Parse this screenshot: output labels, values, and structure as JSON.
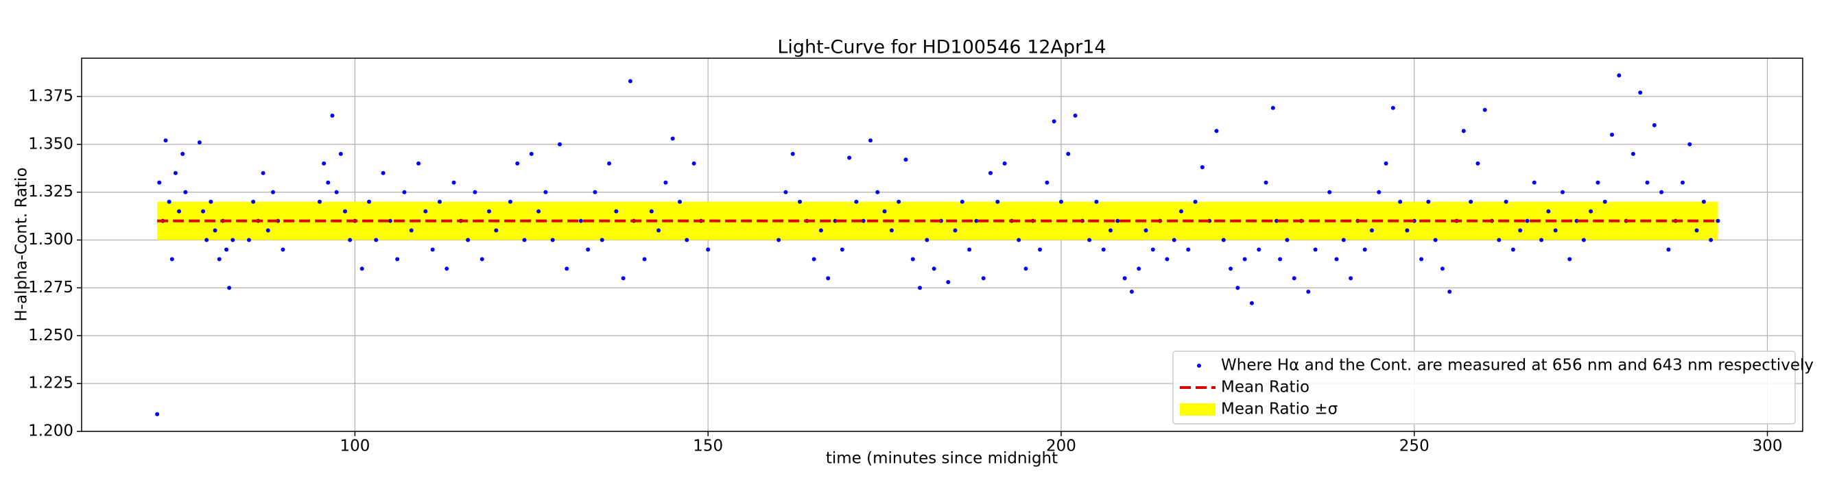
{
  "chart_data": {
    "type": "scatter",
    "title": "Light-Curve for HD100546 12Apr14",
    "x_label": "time (minutes since midnight",
    "y_label": "H-alpha-Cont. Ratio",
    "xlim": [
      61.3,
      305
    ],
    "ylim": [
      1.2,
      1.395
    ],
    "xticks": [
      100,
      150,
      200,
      250,
      300
    ],
    "yticks": [
      {
        "value": 1.2,
        "label": "1.200"
      },
      1.225,
      {
        "value": 1.25,
        "label": "1.250"
      },
      1.275,
      {
        "value": 1.3,
        "label": "1.300"
      },
      1.325,
      {
        "value": 1.35,
        "label": "1.350"
      },
      1.375
    ],
    "grid": true,
    "legend": "lower right",
    "series": [
      {
        "name": "Where Hα and the Cont. are measured at 656 nm and 643 nm respectively",
        "color": "#0000ff",
        "x": [
          72,
          72.3,
          72.8,
          73.2,
          73.7,
          74.1,
          74.6,
          75.1,
          75.6,
          76,
          78,
          78.5,
          79,
          79.6,
          80.2,
          80.8,
          81.3,
          81.8,
          82.2,
          82.7,
          85,
          85.6,
          86.3,
          87,
          87.7,
          88.4,
          89.1,
          89.8,
          95,
          95.6,
          96.2,
          96.8,
          97.4,
          98,
          98.6,
          99.3,
          100,
          101,
          102,
          103,
          104,
          105,
          106,
          107,
          108,
          109,
          110,
          111,
          112,
          113,
          114,
          115,
          116,
          117,
          118,
          119,
          120,
          122,
          123,
          124,
          125,
          126,
          127,
          128,
          129,
          130,
          132,
          133,
          134,
          135,
          136,
          137,
          138,
          139,
          139.5,
          141,
          142,
          143,
          144,
          145,
          146,
          147,
          148,
          149,
          150,
          160,
          161,
          162,
          163,
          164,
          165,
          166,
          167,
          168,
          169,
          170,
          171,
          172,
          173,
          174,
          175,
          176,
          177,
          178,
          179,
          180,
          181,
          182,
          183,
          184,
          185,
          186,
          187,
          188,
          189,
          190,
          191,
          192,
          193,
          194,
          195,
          196,
          197,
          198,
          199,
          200,
          201,
          202,
          203,
          204,
          205,
          206,
          207,
          208,
          209,
          210,
          211,
          212,
          213,
          214,
          215,
          216,
          217,
          218,
          219,
          220,
          221,
          222,
          223,
          224,
          225,
          226,
          227,
          228,
          229,
          230,
          230.5,
          231,
          232,
          233,
          234,
          235,
          236,
          238,
          239,
          240,
          241,
          242,
          243,
          244,
          245,
          246,
          247,
          248,
          249,
          250,
          251,
          252,
          253,
          254,
          255,
          256,
          257,
          258,
          259,
          260,
          261,
          262,
          263,
          264,
          265,
          266,
          267,
          268,
          269,
          270,
          271,
          272,
          273,
          274,
          275,
          276,
          277,
          278,
          279,
          280,
          281,
          282,
          283,
          284,
          285,
          286,
          287,
          288,
          289,
          290,
          291,
          292,
          293
        ],
        "values": [
          1.209,
          1.33,
          1.31,
          1.352,
          1.32,
          1.29,
          1.335,
          1.315,
          1.345,
          1.325,
          1.351,
          1.315,
          1.3,
          1.32,
          1.305,
          1.29,
          1.31,
          1.295,
          1.275,
          1.3,
          1.3,
          1.32,
          1.31,
          1.335,
          1.305,
          1.325,
          1.31,
          1.295,
          1.32,
          1.34,
          1.33,
          1.365,
          1.325,
          1.345,
          1.315,
          1.3,
          1.31,
          1.285,
          1.32,
          1.3,
          1.335,
          1.31,
          1.29,
          1.325,
          1.305,
          1.34,
          1.315,
          1.295,
          1.32,
          1.285,
          1.33,
          1.31,
          1.3,
          1.325,
          1.29,
          1.315,
          1.305,
          1.32,
          1.34,
          1.3,
          1.345,
          1.315,
          1.325,
          1.3,
          1.35,
          1.285,
          1.31,
          1.295,
          1.325,
          1.3,
          1.34,
          1.315,
          1.28,
          1.383,
          1.31,
          1.29,
          1.315,
          1.305,
          1.33,
          1.353,
          1.32,
          1.3,
          1.34,
          1.31,
          1.295,
          1.3,
          1.325,
          1.345,
          1.32,
          1.31,
          1.29,
          1.305,
          1.28,
          1.31,
          1.295,
          1.343,
          1.32,
          1.31,
          1.352,
          1.325,
          1.315,
          1.305,
          1.32,
          1.342,
          1.29,
          1.275,
          1.3,
          1.285,
          1.31,
          1.278,
          1.305,
          1.32,
          1.295,
          1.31,
          1.28,
          1.335,
          1.32,
          1.34,
          1.31,
          1.3,
          1.285,
          1.31,
          1.295,
          1.33,
          1.362,
          1.32,
          1.345,
          1.365,
          1.31,
          1.3,
          1.32,
          1.295,
          1.305,
          1.31,
          1.28,
          1.273,
          1.285,
          1.305,
          1.295,
          1.31,
          1.29,
          1.3,
          1.315,
          1.295,
          1.32,
          1.338,
          1.31,
          1.357,
          1.3,
          1.285,
          1.275,
          1.29,
          1.267,
          1.295,
          1.33,
          1.369,
          1.31,
          1.29,
          1.3,
          1.28,
          1.31,
          1.273,
          1.295,
          1.325,
          1.29,
          1.3,
          1.28,
          1.31,
          1.295,
          1.305,
          1.325,
          1.34,
          1.369,
          1.32,
          1.305,
          1.31,
          1.29,
          1.32,
          1.3,
          1.285,
          1.273,
          1.31,
          1.357,
          1.32,
          1.34,
          1.368,
          1.31,
          1.3,
          1.32,
          1.295,
          1.305,
          1.31,
          1.33,
          1.3,
          1.315,
          1.305,
          1.325,
          1.29,
          1.31,
          1.3,
          1.315,
          1.33,
          1.32,
          1.355,
          1.386,
          1.31,
          1.345,
          1.377,
          1.33,
          1.36,
          1.325,
          1.295,
          1.31,
          1.33,
          1.35,
          1.305,
          1.32,
          1.3,
          1.31
        ]
      }
    ],
    "mean_line": {
      "name": "Mean Ratio",
      "color": "#dd0000",
      "x": [
        72,
        293
      ],
      "values": [
        1.31,
        1.31
      ]
    },
    "band": {
      "name": "Mean Ratio ±σ",
      "color": "#ffff00",
      "x": [
        72,
        293
      ],
      "lower": 1.3,
      "upper": 1.32
    }
  }
}
